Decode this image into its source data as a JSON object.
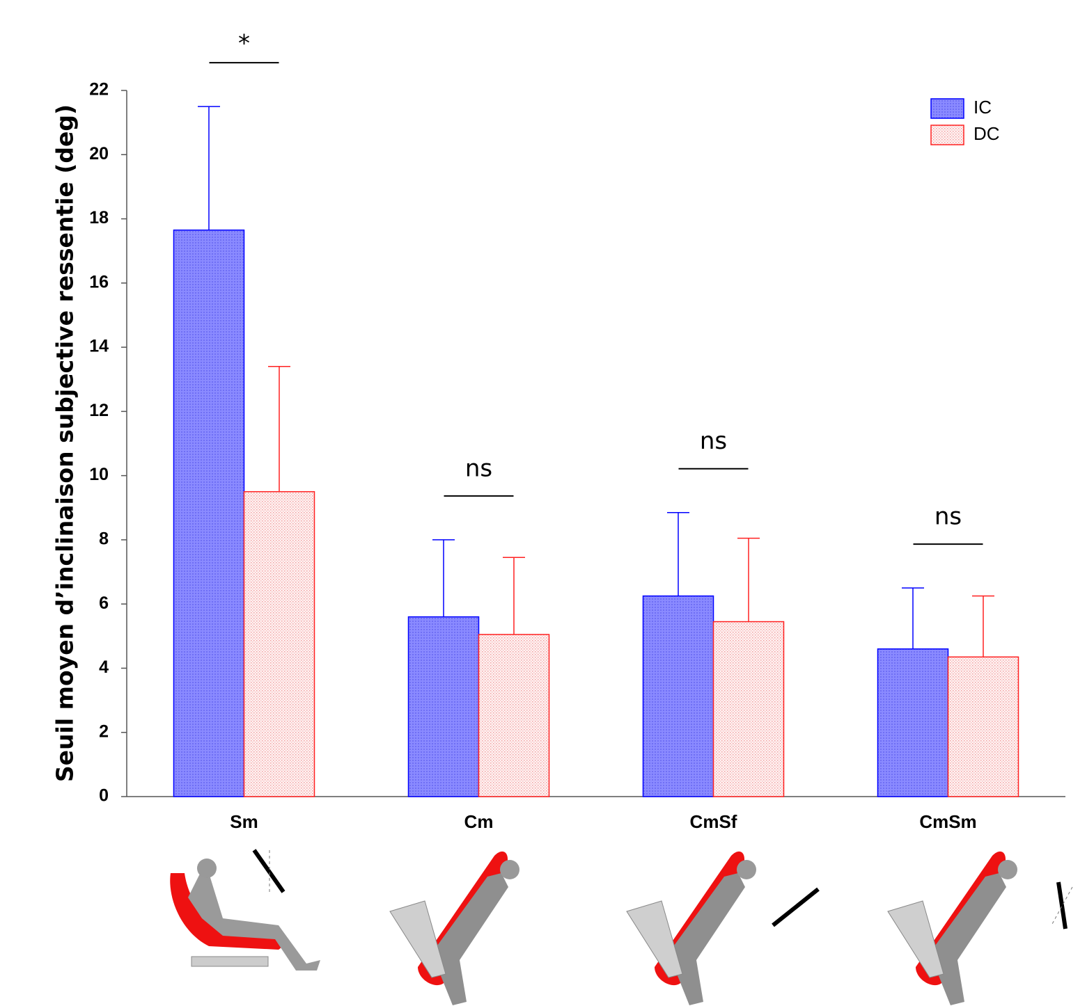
{
  "chart_data": {
    "type": "bar",
    "y_label": "Seuil moyen d’inclinaison subjective ressentie (deg)",
    "categories": [
      "Sm",
      "Cm",
      "CmSf",
      "CmSm"
    ],
    "series": [
      {
        "name": "IC",
        "color": "#0000ff",
        "values": [
          17.65,
          5.6,
          6.25,
          4.6
        ],
        "errors": [
          3.85,
          2.4,
          2.6,
          1.9
        ]
      },
      {
        "name": "DC",
        "color": "#ff2020",
        "values": [
          9.5,
          5.05,
          5.45,
          4.35
        ],
        "errors": [
          3.9,
          2.4,
          2.6,
          1.9
        ]
      }
    ],
    "significance": [
      "*",
      "ns",
      "ns",
      "ns"
    ],
    "ylim": [
      0,
      22
    ],
    "yticks": [
      0,
      2,
      4,
      6,
      8,
      10,
      12,
      14,
      16,
      18,
      20,
      22
    ],
    "legend": "top-right"
  }
}
